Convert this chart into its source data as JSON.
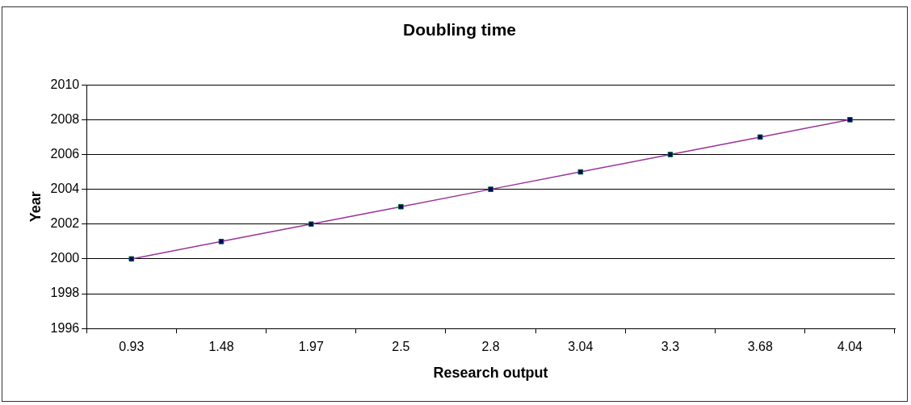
{
  "chart_data": {
    "type": "line",
    "title": "Doubling time",
    "xlabel": "Research output",
    "ylabel": "Year",
    "categories": [
      "0.93",
      "1.48",
      "1.97",
      "2.5",
      "2.8",
      "3.04",
      "3.3",
      "3.68",
      "4.04"
    ],
    "series": [
      {
        "color": "#993399",
        "values": [
          2000,
          2001,
          2002,
          2003,
          2004,
          2005,
          2006,
          2007,
          2008
        ]
      }
    ],
    "ylim": [
      1996,
      2010
    ],
    "yticks": [
      1996,
      1998,
      2000,
      2002,
      2004,
      2006,
      2008,
      2010
    ],
    "grid": "y",
    "legend": false,
    "marker": "square",
    "line_style": "solid"
  }
}
